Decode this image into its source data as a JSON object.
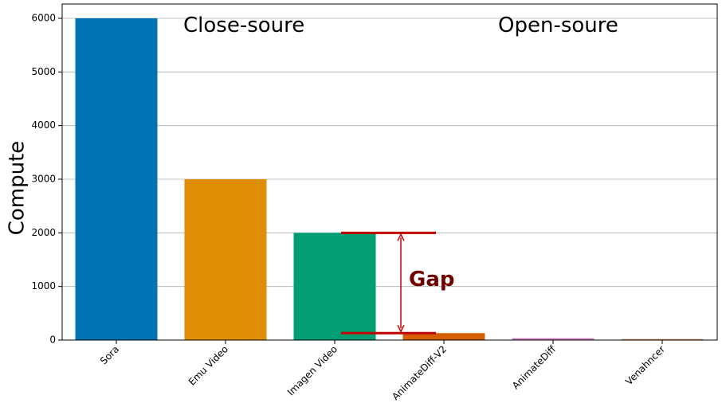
{
  "chart_data": {
    "type": "bar",
    "categories": [
      "Sora",
      "Emu Video",
      "Imagen Video",
      "AnimateDiff-V2",
      "AnimateDiff",
      "Venahncer"
    ],
    "values": [
      6000,
      3000,
      2000,
      130,
      35,
      20
    ],
    "colors": [
      "#0173b2",
      "#de8f05",
      "#029e73",
      "#d55e00",
      "#cc78bc",
      "#ca9161"
    ],
    "title": "",
    "xlabel": "",
    "ylabel": "Compute",
    "ylim": [
      0,
      6000
    ],
    "yticks": [
      0,
      1000,
      2000,
      3000,
      4000,
      5000,
      6000
    ],
    "grid": "horizontal",
    "annotations": {
      "closed_source": "Close-soure",
      "open_source": "Open-soure",
      "gap": "Gap",
      "gap_range": [
        130,
        2000
      ],
      "gap_color": "#c00000"
    }
  }
}
